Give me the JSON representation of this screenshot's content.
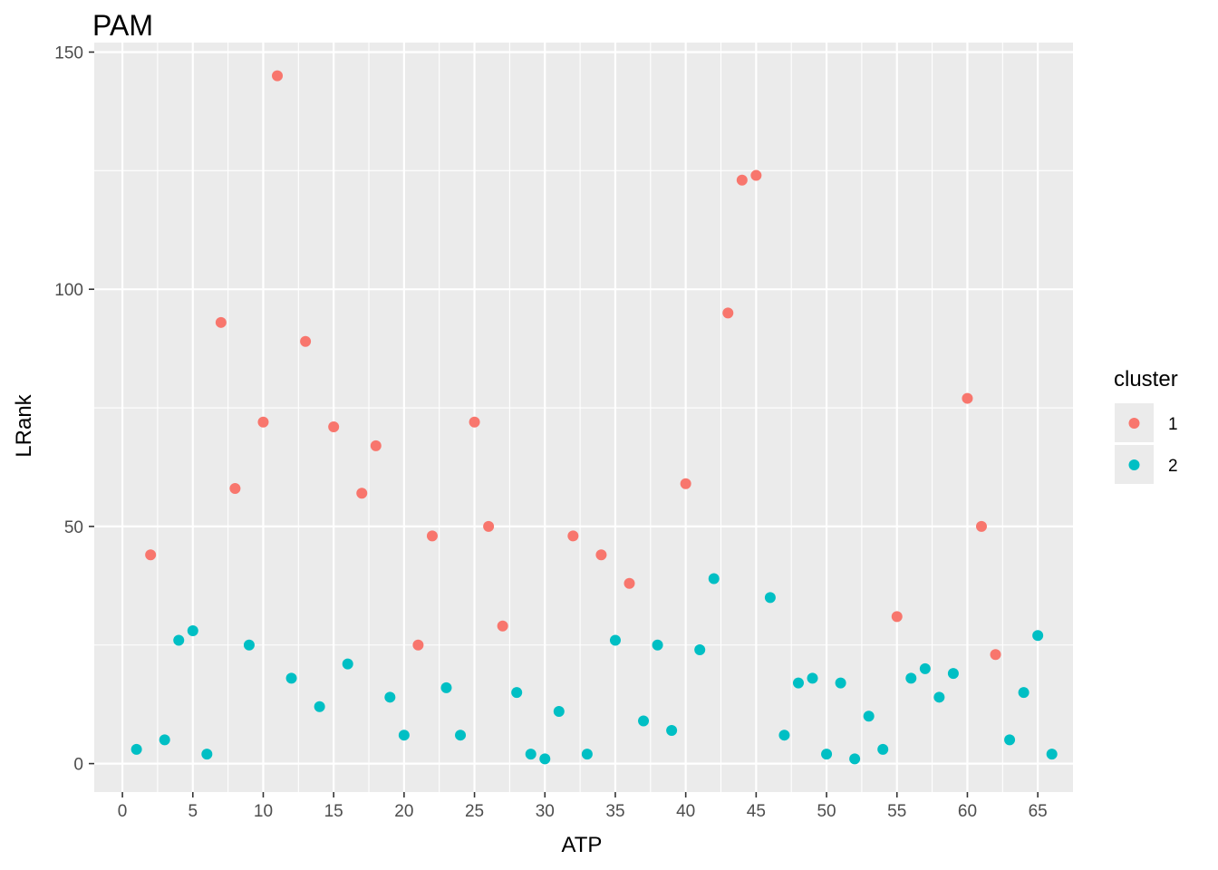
{
  "chart_data": {
    "type": "scatter",
    "title": "PAM",
    "xlabel": "ATP",
    "ylabel": "LRank",
    "xlim": [
      -2,
      67.5
    ],
    "ylim": [
      -6,
      152
    ],
    "xticks": [
      0,
      5,
      10,
      15,
      20,
      25,
      30,
      35,
      40,
      45,
      50,
      55,
      60,
      65
    ],
    "yticks": [
      0,
      50,
      100,
      150
    ],
    "grid": true,
    "legend": {
      "title": "cluster",
      "position": "right"
    },
    "series": [
      {
        "name": "1",
        "color": "#F8766D",
        "points": [
          [
            2,
            44
          ],
          [
            7,
            93
          ],
          [
            8,
            58
          ],
          [
            10,
            72
          ],
          [
            11,
            145
          ],
          [
            13,
            89
          ],
          [
            15,
            71
          ],
          [
            17,
            57
          ],
          [
            18,
            67
          ],
          [
            21,
            25
          ],
          [
            22,
            48
          ],
          [
            25,
            72
          ],
          [
            26,
            50
          ],
          [
            27,
            29
          ],
          [
            32,
            48
          ],
          [
            34,
            44
          ],
          [
            36,
            38
          ],
          [
            40,
            59
          ],
          [
            43,
            95
          ],
          [
            44,
            123
          ],
          [
            45,
            124
          ],
          [
            55,
            31
          ],
          [
            60,
            77
          ],
          [
            61,
            50
          ],
          [
            62,
            23
          ]
        ]
      },
      {
        "name": "2",
        "color": "#00BFC4",
        "points": [
          [
            1,
            3
          ],
          [
            3,
            5
          ],
          [
            4,
            26
          ],
          [
            5,
            28
          ],
          [
            6,
            2
          ],
          [
            9,
            25
          ],
          [
            12,
            18
          ],
          [
            14,
            12
          ],
          [
            16,
            21
          ],
          [
            19,
            14
          ],
          [
            20,
            6
          ],
          [
            23,
            16
          ],
          [
            24,
            6
          ],
          [
            28,
            15
          ],
          [
            29,
            2
          ],
          [
            30,
            1
          ],
          [
            31,
            11
          ],
          [
            33,
            2
          ],
          [
            35,
            26
          ],
          [
            37,
            9
          ],
          [
            38,
            25
          ],
          [
            39,
            7
          ],
          [
            41,
            24
          ],
          [
            42,
            39
          ],
          [
            46,
            35
          ],
          [
            47,
            6
          ],
          [
            48,
            17
          ],
          [
            49,
            18
          ],
          [
            50,
            2
          ],
          [
            51,
            17
          ],
          [
            52,
            1
          ],
          [
            53,
            10
          ],
          [
            54,
            3
          ],
          [
            56,
            18
          ],
          [
            57,
            20
          ],
          [
            58,
            14
          ],
          [
            59,
            19
          ],
          [
            63,
            5
          ],
          [
            64,
            15
          ],
          [
            65,
            27
          ],
          [
            66,
            2
          ]
        ]
      }
    ]
  }
}
